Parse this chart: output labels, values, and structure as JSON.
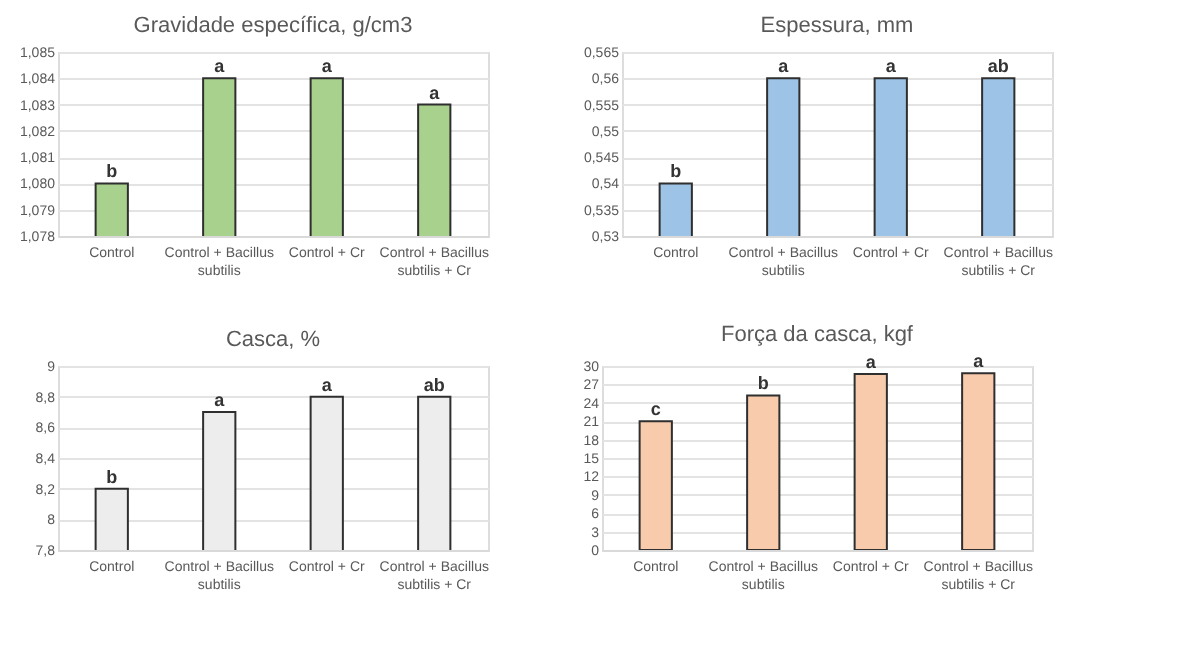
{
  "chart_data": [
    {
      "type": "bar",
      "title": "Gravidade específica, g/cm3",
      "categories": [
        "Control",
        "Control + Bacillus subtilis",
        "Control + Cr",
        "Control + Bacillus subtilis + Cr"
      ],
      "values": [
        1.08,
        1.084,
        1.084,
        1.083
      ],
      "color": "#a9d18e",
      "ylim": [
        1.078,
        1.085
      ],
      "yticks": [
        {
          "value": 1.078,
          "label": "1,078"
        },
        {
          "value": 1.079,
          "label": "1,079"
        },
        {
          "value": 1.08,
          "label": "1,080"
        },
        {
          "value": 1.081,
          "label": "1,081"
        },
        {
          "value": 1.082,
          "label": "1,082"
        },
        {
          "value": 1.083,
          "label": "1,083"
        },
        {
          "value": 1.084,
          "label": "1,084"
        },
        {
          "value": 1.085,
          "label": "1,085"
        }
      ],
      "grid": "y",
      "annotations": [
        {
          "text": "b",
          "x": "Control",
          "y": 1.08
        },
        {
          "text": "a",
          "x": "Control + Bacillus subtilis",
          "y": 1.084
        },
        {
          "text": "a",
          "x": "Control + Cr",
          "y": 1.084
        },
        {
          "text": "a",
          "x": "Control + Bacillus subtilis + Cr",
          "y": 1.083
        }
      ]
    },
    {
      "type": "bar",
      "title": "Espessura, mm",
      "categories": [
        "Control",
        "Control + Bacillus subtilis",
        "Control + Cr",
        "Control + Bacillus subtilis + Cr"
      ],
      "values": [
        0.54,
        0.56,
        0.56,
        0.56
      ],
      "color": "#9dc3e6",
      "ylim": [
        0.53,
        0.565
      ],
      "yticks": [
        {
          "value": 0.53,
          "label": "0,53"
        },
        {
          "value": 0.535,
          "label": "0,535"
        },
        {
          "value": 0.54,
          "label": "0,54"
        },
        {
          "value": 0.545,
          "label": "0,545"
        },
        {
          "value": 0.55,
          "label": "0,55"
        },
        {
          "value": 0.555,
          "label": "0,555"
        },
        {
          "value": 0.56,
          "label": "0,56"
        },
        {
          "value": 0.565,
          "label": "0,565"
        }
      ],
      "grid": "y",
      "annotations": [
        {
          "text": "b",
          "x": "Control",
          "y": 0.54
        },
        {
          "text": "a",
          "x": "Control + Bacillus subtilis",
          "y": 0.56
        },
        {
          "text": "a",
          "x": "Control + Cr",
          "y": 0.56
        },
        {
          "text": "ab",
          "x": "Control + Bacillus subtilis + Cr",
          "y": 0.56
        }
      ]
    },
    {
      "type": "bar",
      "title": "Casca, %",
      "categories": [
        "Control",
        "Control + Bacillus subtilis",
        "Control + Cr",
        "Control + Bacillus subtilis + Cr"
      ],
      "values": [
        8.2,
        8.7,
        8.8,
        8.8
      ],
      "color": "#ededed",
      "ylim": [
        7.8,
        9
      ],
      "yticks": [
        {
          "value": 7.8,
          "label": "7,8"
        },
        8,
        {
          "value": 8.2,
          "label": "8,2"
        },
        {
          "value": 8.4,
          "label": "8,4"
        },
        {
          "value": 8.6,
          "label": "8,6"
        },
        {
          "value": 8.8,
          "label": "8,8"
        },
        9
      ],
      "grid": "y",
      "annotations": [
        {
          "text": "b",
          "x": "Control",
          "y": 8.2
        },
        {
          "text": "a",
          "x": "Control + Bacillus subtilis",
          "y": 8.7
        },
        {
          "text": "a",
          "x": "Control + Cr",
          "y": 8.8
        },
        {
          "text": "ab",
          "x": "Control + Bacillus subtilis + Cr",
          "y": 8.8
        }
      ]
    },
    {
      "type": "bar",
      "title": "Força da casca, kgf",
      "categories": [
        "Control",
        "Control + Bacillus subtilis",
        "Control + Cr",
        "Control + Bacillus subtilis + Cr"
      ],
      "values": [
        21,
        25.2,
        28.7,
        28.8
      ],
      "color": "#f8cbad",
      "ylim": [
        0,
        30
      ],
      "yticks": [
        0,
        3,
        6,
        9,
        12,
        15,
        18,
        21,
        24,
        27,
        30
      ],
      "grid": "y",
      "annotations": [
        {
          "text": "c",
          "x": "Control",
          "y": 21
        },
        {
          "text": "b",
          "x": "Control + Bacillus subtilis",
          "y": 25.2
        },
        {
          "text": "a",
          "x": "Control + Cr",
          "y": 28.7
        },
        {
          "text": "a",
          "x": "Control + Bacillus subtilis + Cr",
          "y": 28.8
        }
      ]
    }
  ]
}
